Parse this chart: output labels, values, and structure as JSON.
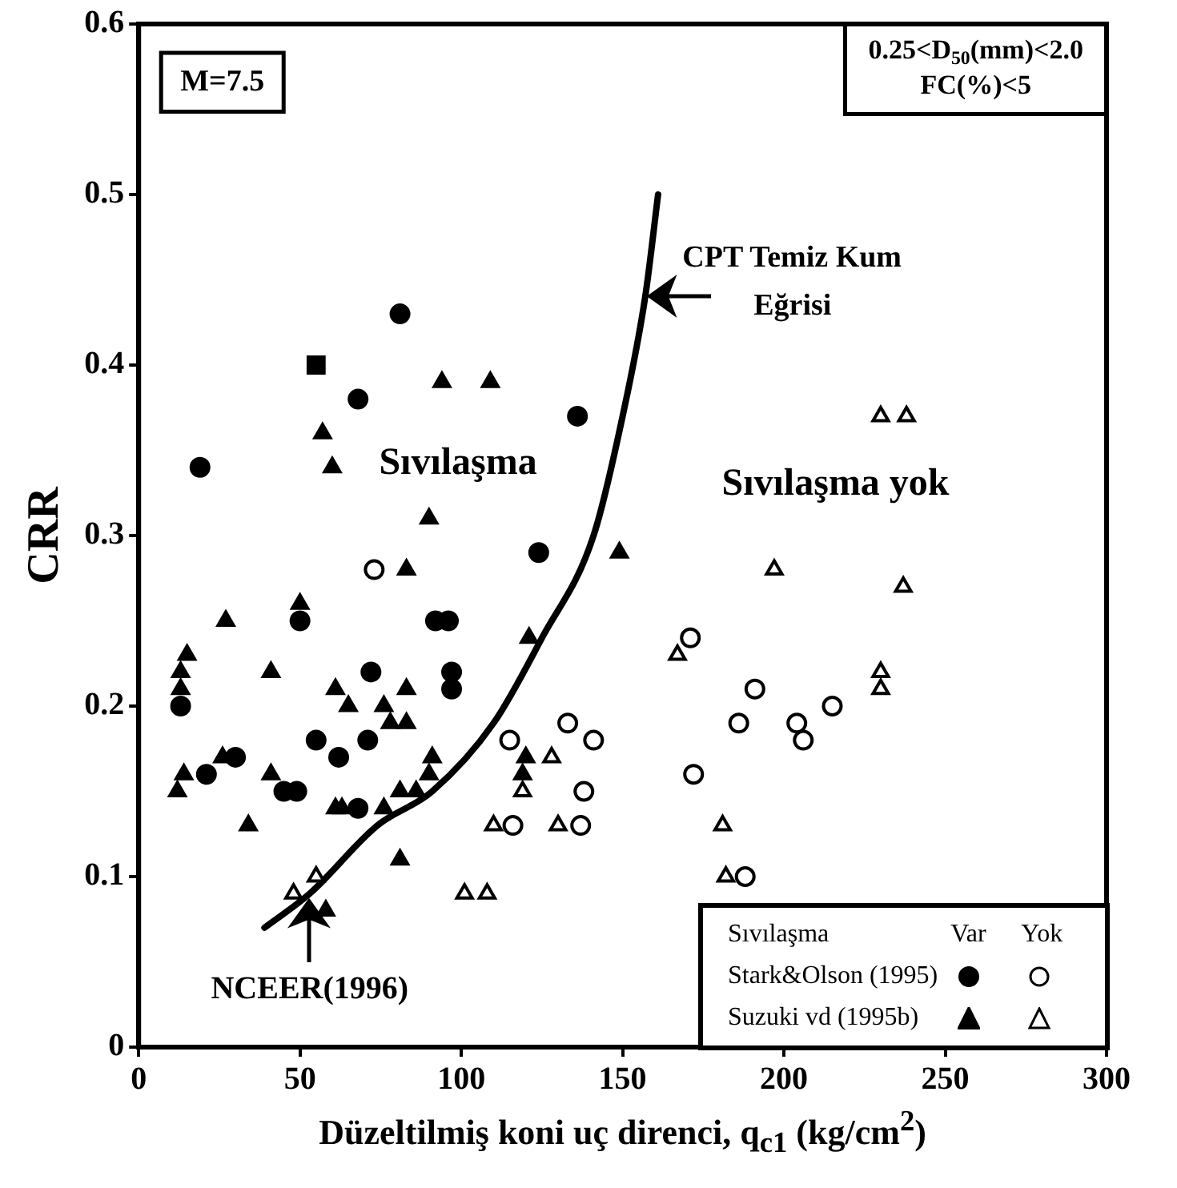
{
  "chart_data": {
    "type": "scatter",
    "ylabel": "CRR",
    "xlabel": "Düzeltilmiş koni uç direnci, q$_{c1}$ (kg/cm$^{2}$)",
    "xlim": [
      0,
      300
    ],
    "xticks": [
      0,
      50,
      100,
      150,
      200,
      250,
      300
    ],
    "ylim": [
      0,
      0.6
    ],
    "yticks": [
      0,
      0.1,
      0.2,
      0.3,
      0.4,
      0.5,
      0.6
    ],
    "grid": false,
    "legend": "bottom right",
    "legend_title": "Sıvılaşma",
    "series": [
      {
        "name": "Stark&Olson (1995)",
        "marker": "circle",
        "color": "#000000",
        "x": [
          19,
          81,
          68,
          136,
          124,
          50,
          92,
          96,
          13,
          72,
          97,
          97,
          55,
          71,
          62,
          30,
          21,
          45,
          49,
          68
        ],
        "values": [
          0.34,
          0.43,
          0.38,
          0.37,
          0.29,
          0.25,
          0.25,
          0.25,
          0.2,
          0.22,
          0.22,
          0.21,
          0.18,
          0.18,
          0.17,
          0.17,
          0.16,
          0.15,
          0.15,
          0.14
        ]
      },
      {
        "marker": "circle",
        "color": "#ffffff",
        "x": [
          73,
          133,
          141,
          115,
          138,
          116,
          137,
          171,
          191,
          186,
          172,
          188,
          204,
          206,
          215
        ],
        "values": [
          0.28,
          0.19,
          0.18,
          0.18,
          0.15,
          0.13,
          0.13,
          0.24,
          0.21,
          0.19,
          0.16,
          0.1,
          0.19,
          0.18,
          0.2
        ]
      },
      {
        "name": "Suzuki vd (1995b)",
        "marker": "triangle",
        "color": "#000000",
        "x": [
          94,
          109,
          57,
          60,
          90,
          83,
          149,
          50,
          27,
          15,
          13,
          13,
          41,
          61,
          65,
          83,
          76,
          78,
          83,
          26,
          14,
          12,
          41,
          61,
          63,
          34,
          81,
          76,
          86,
          90,
          91,
          81,
          120,
          119,
          58,
          121
        ],
        "values": [
          0.39,
          0.39,
          0.36,
          0.34,
          0.31,
          0.28,
          0.29,
          0.26,
          0.25,
          0.23,
          0.22,
          0.21,
          0.22,
          0.21,
          0.2,
          0.21,
          0.2,
          0.19,
          0.19,
          0.17,
          0.16,
          0.15,
          0.16,
          0.14,
          0.14,
          0.13,
          0.15,
          0.14,
          0.15,
          0.16,
          0.17,
          0.11,
          0.17,
          0.16,
          0.08,
          0.24
        ]
      },
      {
        "marker": "triangle",
        "color": "#ffffff",
        "x": [
          48,
          55,
          101,
          108,
          128,
          119,
          110,
          130,
          167,
          181,
          182,
          230,
          238,
          197,
          237,
          230,
          230
        ],
        "values": [
          0.09,
          0.1,
          0.09,
          0.09,
          0.17,
          0.15,
          0.13,
          0.13,
          0.23,
          0.13,
          0.1,
          0.37,
          0.37,
          0.28,
          0.27,
          0.22,
          0.21
        ]
      },
      {
        "marker": "square",
        "color": "#000000",
        "x": [
          55
        ],
        "values": [
          0.4
        ]
      },
      {
        "type": "line",
        "color": "#000000",
        "x": [
          39,
          53,
          74,
          91,
          110,
          125,
          141,
          150,
          157,
          161
        ],
        "values": [
          0.07,
          0.09,
          0.13,
          0.15,
          0.19,
          0.24,
          0.3,
          0.37,
          0.44,
          0.5
        ]
      }
    ],
    "annotations": [
      "M=7.5",
      "0.25<D$_{50}$(mm)<2.0\nFC(%)<5",
      "Sıvılaşma",
      "Sıvılaşma yok",
      {
        "text": "CPT Temiz Kum\nEğrisi",
        "x": 157,
        "y": 0.44
      },
      {
        "text": "NCEER(1996)",
        "x": 53,
        "y": 0.09
      },
      "Var",
      "Yok"
    ]
  }
}
